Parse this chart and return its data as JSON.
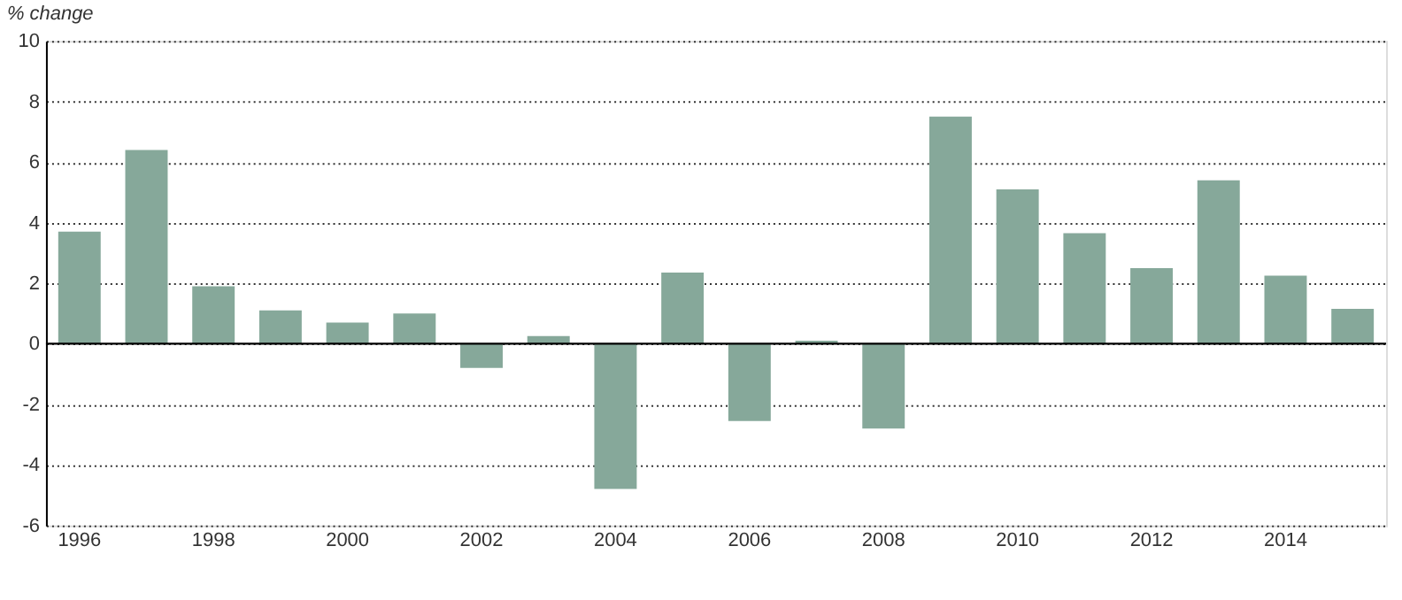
{
  "chart_data": {
    "type": "bar",
    "ylabel": "% change",
    "categories": [
      "1996",
      null,
      "1998",
      null,
      "2000",
      null,
      "2002",
      null,
      "2004",
      null,
      "2006",
      null,
      "2008",
      null,
      "2010",
      null,
      "2012",
      null,
      "2014",
      null
    ],
    "values": [
      3.7,
      6.4,
      1.9,
      1.1,
      0.7,
      1.0,
      -0.8,
      0.25,
      -4.8,
      2.35,
      -2.55,
      0.1,
      -2.8,
      7.5,
      5.1,
      3.65,
      2.5,
      5.4,
      2.25,
      1.15
    ],
    "color": "#86a89a",
    "ylim": [
      -6,
      10
    ],
    "yticks": [
      -6,
      -4,
      -2,
      0,
      2,
      4,
      6,
      8,
      10
    ],
    "grid": "y"
  }
}
